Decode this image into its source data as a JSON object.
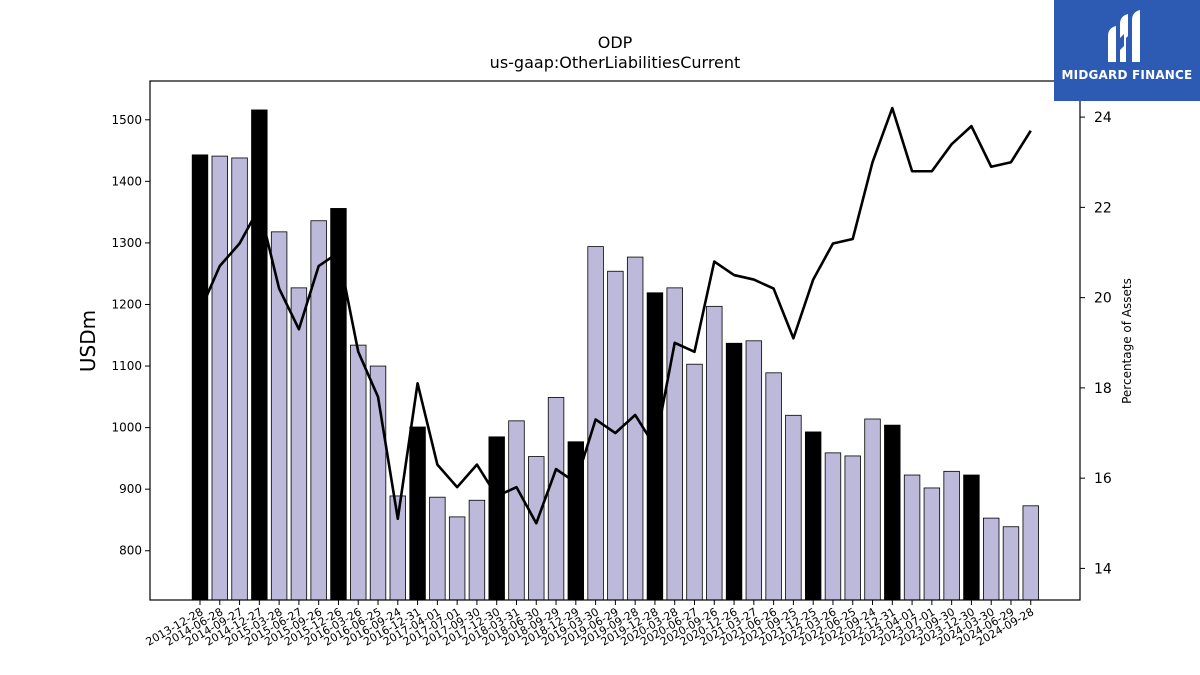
{
  "brand": {
    "name": "MIDGARD FINANCE",
    "logo_icon": "midgard-logo-icon",
    "color": "#2d5ab2"
  },
  "chart_data": {
    "type": "bar",
    "title": "ODP",
    "subtitle": "us-gaap:OtherLiabilitiesCurrent",
    "ylabel": "USDm",
    "y2label": "Percentage of Assets",
    "ylim": [
      720,
      1563
    ],
    "y2lim": [
      13.3,
      24.8
    ],
    "yticks": [
      800,
      900,
      1000,
      1100,
      1200,
      1300,
      1400,
      1500
    ],
    "y2ticks": [
      14,
      16,
      18,
      20,
      22,
      24
    ],
    "grid": false,
    "bar_color": "#bcb9db",
    "highlight_color": "#000000",
    "line_color": "#000000",
    "categories": [
      "2013-12-28",
      "2014-06-28",
      "2014-09-27",
      "2014-12-27",
      "2015-03-28",
      "2015-06-27",
      "2015-09-26",
      "2015-12-26",
      "2016-03-26",
      "2016-06-25",
      "2016-09-24",
      "2016-12-31",
      "2017-04-01",
      "2017-07-01",
      "2017-09-30",
      "2017-12-30",
      "2018-03-31",
      "2018-06-30",
      "2018-09-29",
      "2018-12-29",
      "2019-03-30",
      "2019-06-29",
      "2019-09-28",
      "2019-12-28",
      "2020-03-28",
      "2020-06-27",
      "2020-09-26",
      "2020-12-26",
      "2021-03-27",
      "2021-06-26",
      "2021-09-25",
      "2021-12-25",
      "2022-03-26",
      "2022-06-25",
      "2022-09-24",
      "2022-12-31",
      "2023-04-01",
      "2023-07-01",
      "2023-09-30",
      "2023-12-30",
      "2024-03-30",
      "2024-06-29",
      "2024-09-28"
    ],
    "series": [
      {
        "type": "bar",
        "values": [
          1443,
          1441,
          1438,
          1516,
          1318,
          1227,
          1336,
          1356,
          1134,
          1100,
          889,
          1001,
          887,
          855,
          882,
          985,
          1011,
          953,
          1049,
          977,
          1294,
          1254,
          1277,
          1219,
          1227,
          1103,
          1197,
          1137,
          1141,
          1089,
          1020,
          993,
          959,
          954,
          1014,
          1004,
          923,
          902,
          929,
          923,
          853,
          839,
          873
        ],
        "highlight": [
          true,
          false,
          false,
          true,
          false,
          false,
          false,
          true,
          false,
          false,
          false,
          true,
          false,
          false,
          false,
          true,
          false,
          false,
          false,
          true,
          false,
          false,
          false,
          true,
          false,
          false,
          false,
          true,
          false,
          false,
          false,
          true,
          false,
          false,
          false,
          true,
          false,
          false,
          false,
          true,
          false,
          false,
          false
        ]
      },
      {
        "type": "line",
        "axis": "right",
        "values": [
          19.7,
          20.7,
          21.2,
          22.0,
          20.2,
          19.3,
          20.7,
          21.0,
          18.8,
          17.8,
          15.1,
          18.1,
          16.3,
          15.8,
          16.3,
          15.6,
          15.8,
          15.0,
          16.2,
          15.9,
          17.3,
          17.0,
          17.4,
          16.7,
          19.0,
          18.8,
          20.8,
          20.5,
          20.4,
          20.2,
          19.1,
          20.4,
          21.2,
          21.3,
          23.0,
          24.2,
          22.8,
          22.8,
          23.4,
          23.8,
          22.9,
          23.0,
          23.7
        ]
      }
    ]
  }
}
